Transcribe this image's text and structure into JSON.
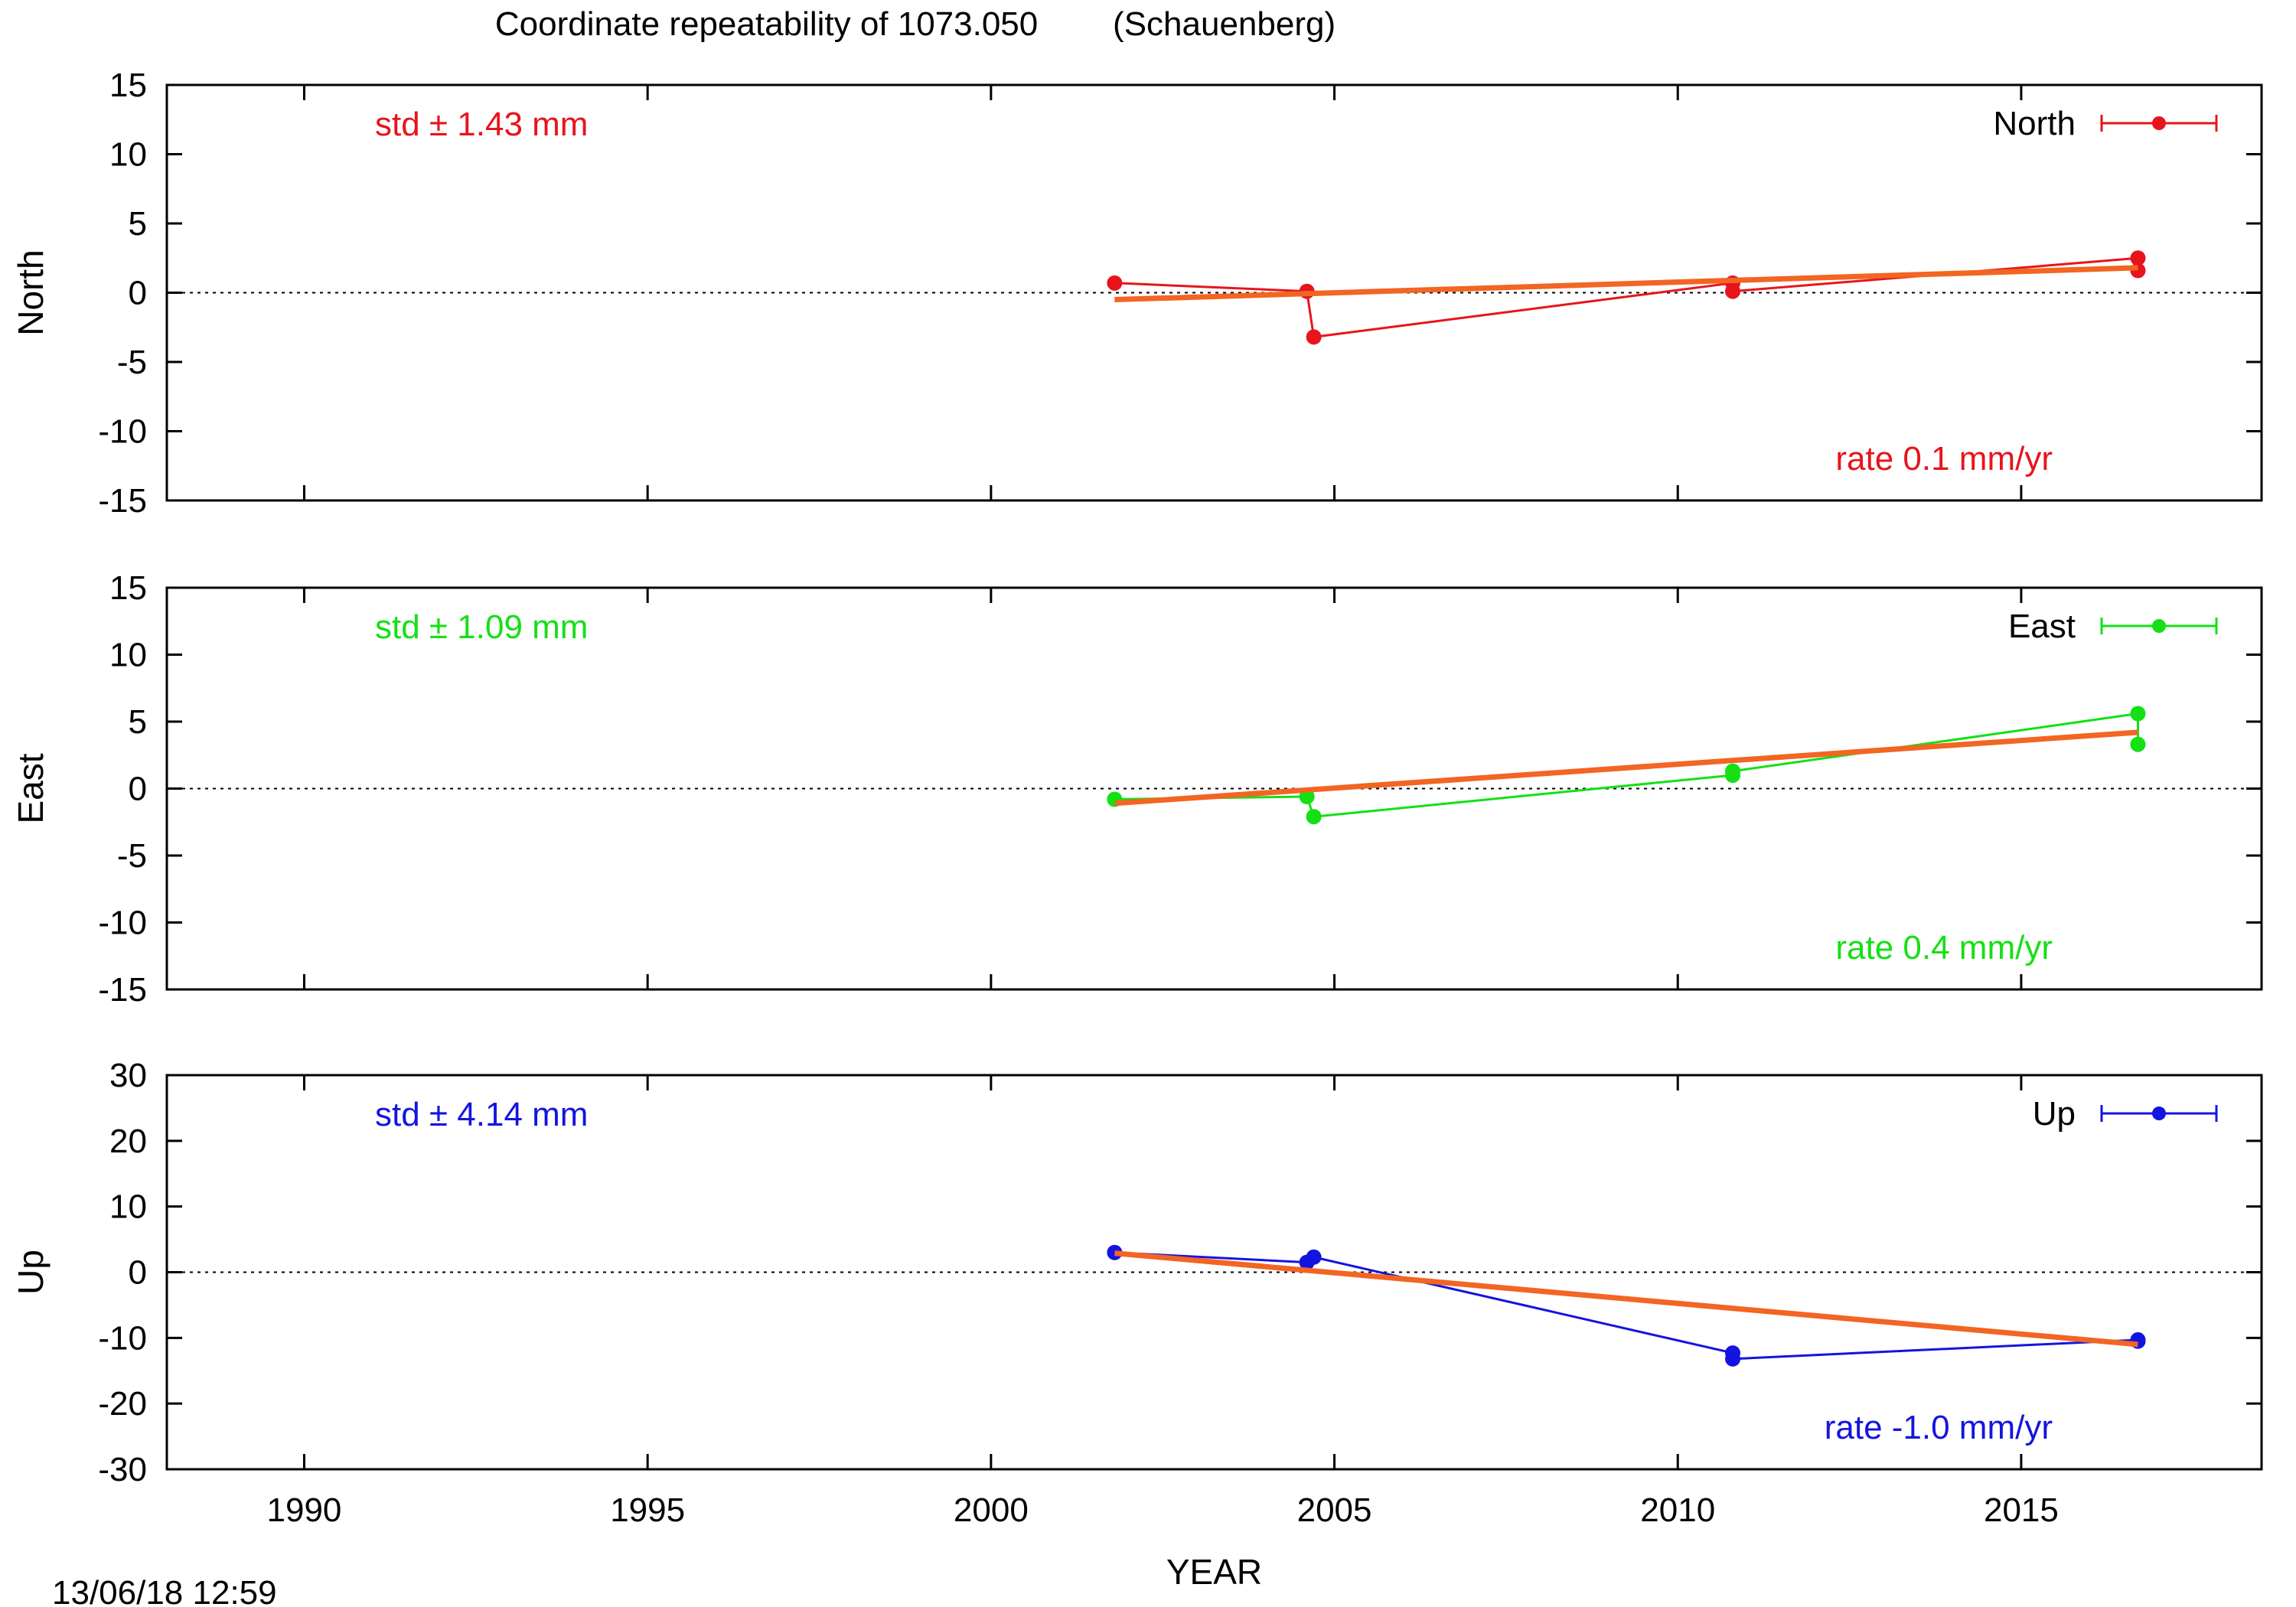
{
  "title": "Coordinate repeatability of 1073.050        (Schauenberg)",
  "timestamp": "13/06/18 12:59",
  "colors": {
    "North": "#e8141b",
    "East": "#14e014",
    "Up": "#1414e0",
    "trend": "#f26522",
    "axis": "#000000"
  },
  "chart_data": [
    {
      "type": "line",
      "ylabel": "North",
      "xlabel": "",
      "xlim": [
        1988,
        2018.5
      ],
      "ylim": [
        -15,
        15
      ],
      "yticks": [
        -15,
        -10,
        -5,
        0,
        5,
        10,
        15
      ],
      "xticks": [
        1990,
        1995,
        2000,
        2005,
        2010,
        2015
      ],
      "std_label": "std ± 1.43 mm",
      "rate_label": "rate  0.1 mm/yr",
      "legend": "top-right",
      "series": [
        {
          "name": "North",
          "x": [
            2001.8,
            2004.6,
            2004.7,
            2010.8,
            2010.8,
            2016.7,
            2016.7
          ],
          "values": [
            0.7,
            0.1,
            -3.2,
            0.7,
            0.1,
            2.5,
            1.6
          ]
        }
      ],
      "trend": {
        "x": [
          2001.8,
          2016.7
        ],
        "values": [
          -0.5,
          1.8
        ]
      }
    },
    {
      "type": "line",
      "ylabel": "East",
      "xlabel": "",
      "xlim": [
        1988,
        2018.5
      ],
      "ylim": [
        -15,
        15
      ],
      "yticks": [
        -15,
        -10,
        -5,
        0,
        5,
        10,
        15
      ],
      "xticks": [
        1990,
        1995,
        2000,
        2005,
        2010,
        2015
      ],
      "std_label": "std ± 1.09 mm",
      "rate_label": "rate  0.4 mm/yr",
      "legend": "top-right",
      "series": [
        {
          "name": "East",
          "x": [
            2001.8,
            2004.6,
            2004.7,
            2010.8,
            2010.8,
            2016.7,
            2016.7
          ],
          "values": [
            -0.8,
            -0.6,
            -2.1,
            1.0,
            1.3,
            5.6,
            3.3
          ]
        }
      ],
      "trend": {
        "x": [
          2001.8,
          2016.7
        ],
        "values": [
          -1.1,
          4.2
        ]
      }
    },
    {
      "type": "line",
      "ylabel": "Up",
      "xlabel": "YEAR",
      "xlim": [
        1988,
        2018.5
      ],
      "ylim": [
        -30,
        30
      ],
      "yticks": [
        -30,
        -20,
        -10,
        0,
        10,
        20,
        30
      ],
      "xticks": [
        1990,
        1995,
        2000,
        2005,
        2010,
        2015
      ],
      "std_label": "std ± 4.14 mm",
      "rate_label": "rate -1.0 mm/yr",
      "legend": "top-right",
      "series": [
        {
          "name": "Up",
          "x": [
            2001.8,
            2004.6,
            2004.7,
            2010.8,
            2010.8,
            2016.7,
            2016.7
          ],
          "values": [
            3.0,
            1.5,
            2.3,
            -12.3,
            -13.2,
            -10.3,
            -10.5
          ]
        }
      ],
      "trend": {
        "x": [
          2001.8,
          2016.7
        ],
        "values": [
          2.9,
          -11.0
        ]
      }
    }
  ]
}
